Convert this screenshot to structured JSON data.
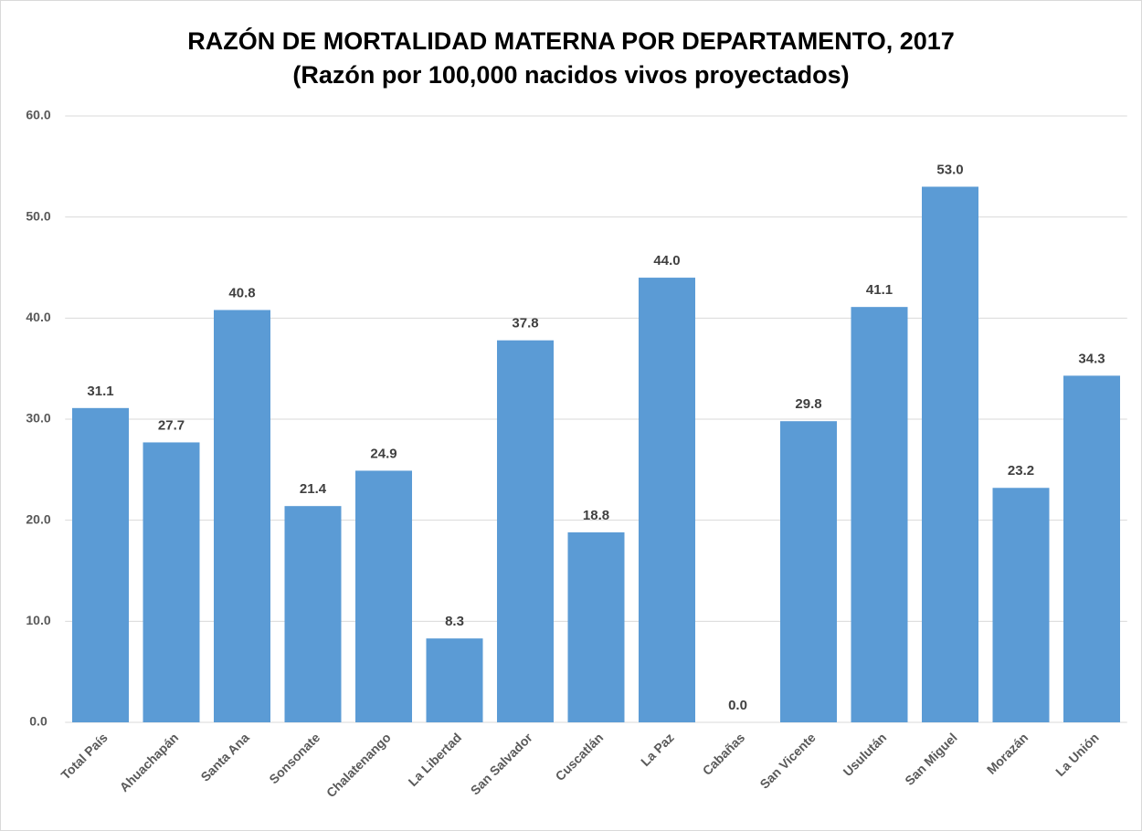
{
  "chart_data": {
    "type": "bar",
    "title": "RAZÓN DE MORTALIDAD MATERNA POR DEPARTAMENTO, 2017",
    "subtitle": "(Razón por 100,000 nacidos vivos proyectados)",
    "categories": [
      "Total País",
      "Ahuachapán",
      "Santa Ana",
      "Sonsonate",
      "Chalatenango",
      "La Libertad",
      "San Salvador",
      "Cuscatlán",
      "La Paz",
      "Cabañas",
      "San Vicente",
      "Usulután",
      "San Miguel",
      "Morazán",
      "La Unión"
    ],
    "values": [
      31.1,
      27.7,
      40.8,
      21.4,
      24.9,
      8.3,
      37.8,
      18.8,
      44.0,
      0,
      29.8,
      41.1,
      53.0,
      23.2,
      34.3
    ],
    "value_labels": [
      "31.1",
      "27.7",
      "40.8",
      "21.4",
      "24.9",
      "8.3",
      "37.8",
      "18.8",
      "44.0",
      "0.0",
      "29.8",
      "41.1",
      "53.0",
      "23.2",
      "34.3"
    ],
    "color": "#5b9bd5",
    "ylim": [
      0,
      60
    ],
    "yticks": [
      {
        "value": 0,
        "label": "0.0"
      },
      {
        "value": 10,
        "label": "10.0"
      },
      {
        "value": 20,
        "label": "20.0"
      },
      {
        "value": 30,
        "label": "30.0"
      },
      {
        "value": 40,
        "label": "40.0"
      },
      {
        "value": 50,
        "label": "50.0"
      },
      {
        "value": 60,
        "label": "60.0"
      }
    ],
    "grid": true
  }
}
